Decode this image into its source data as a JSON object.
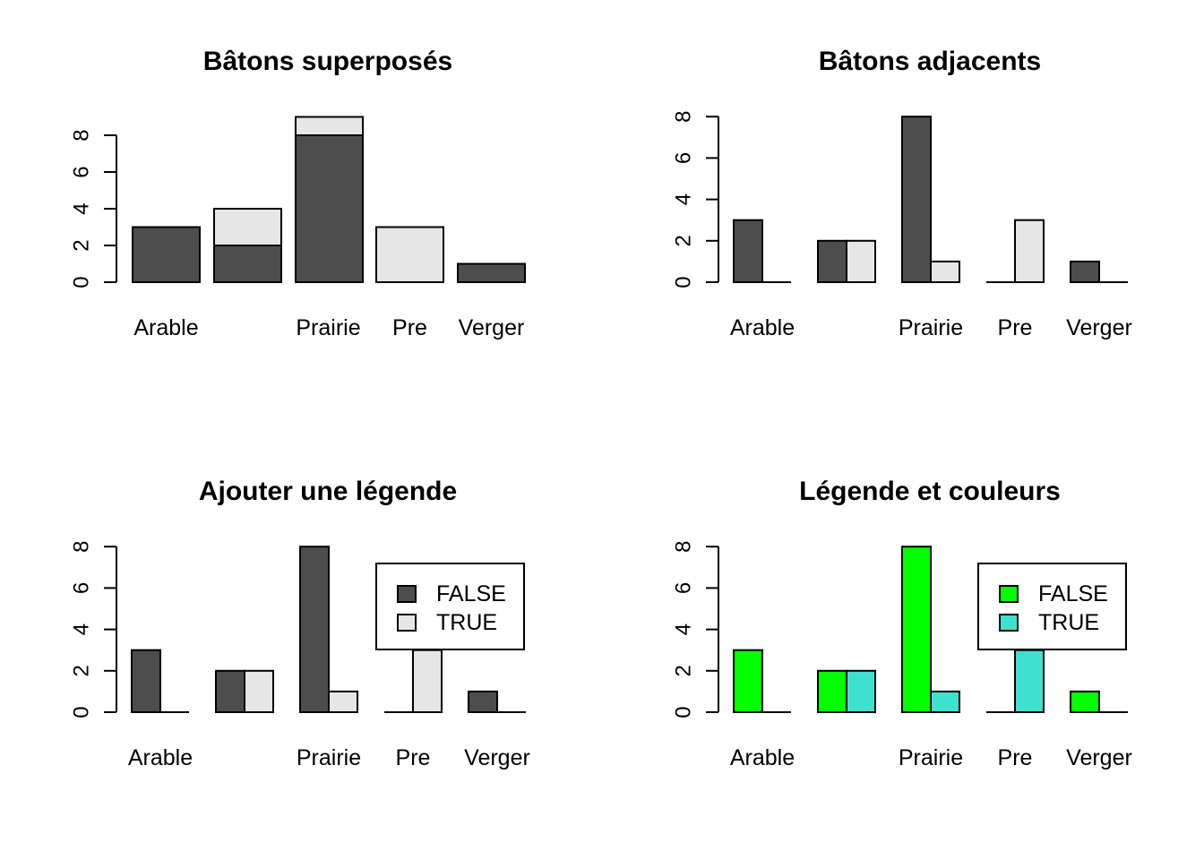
{
  "colors": {
    "grey_dark": "#4D4D4D",
    "grey_light": "#E6E6E6",
    "green": "#00FF00",
    "turquoise": "#40E0D0",
    "border": "#000000"
  },
  "chart_data": [
    {
      "type": "bar",
      "mode": "stacked",
      "title": "Bâtons superposés",
      "categories": [
        "Arable",
        "",
        "Prairie",
        "Pre",
        "Verger"
      ],
      "series": [
        {
          "values": [
            3,
            2,
            8,
            0,
            1
          ],
          "color": "#4D4D4D"
        },
        {
          "values": [
            0,
            2,
            1,
            3,
            0
          ],
          "color": "#E6E6E6"
        }
      ],
      "yticks": [
        "0",
        "2",
        "4",
        "6",
        "8"
      ],
      "ylim": [
        0,
        9
      ],
      "legend": null
    },
    {
      "type": "bar",
      "mode": "grouped",
      "title": "Bâtons adjacents",
      "categories": [
        "Arable",
        "",
        "Prairie",
        "Pre",
        "Verger"
      ],
      "series": [
        {
          "values": [
            3,
            2,
            8,
            0,
            1
          ],
          "color": "#4D4D4D"
        },
        {
          "values": [
            0,
            2,
            1,
            3,
            0
          ],
          "color": "#E6E6E6"
        }
      ],
      "yticks": [
        "0",
        "2",
        "4",
        "6",
        "8"
      ],
      "ylim": [
        0,
        8
      ],
      "legend": null
    },
    {
      "type": "bar",
      "mode": "grouped",
      "title": "Ajouter une légende",
      "categories": [
        "Arable",
        "",
        "Prairie",
        "Pre",
        "Verger"
      ],
      "series": [
        {
          "name": "FALSE",
          "values": [
            3,
            2,
            8,
            0,
            1
          ],
          "color": "#4D4D4D"
        },
        {
          "name": "TRUE",
          "values": [
            0,
            2,
            1,
            3,
            0
          ],
          "color": "#E6E6E6"
        }
      ],
      "yticks": [
        "0",
        "2",
        "4",
        "6",
        "8"
      ],
      "ylim": [
        0,
        8
      ],
      "legend": "top-right"
    },
    {
      "type": "bar",
      "mode": "grouped",
      "title": "Légende et couleurs",
      "categories": [
        "Arable",
        "",
        "Prairie",
        "Pre",
        "Verger"
      ],
      "series": [
        {
          "name": "FALSE",
          "values": [
            3,
            2,
            8,
            0,
            1
          ],
          "color": "#00FF00"
        },
        {
          "name": "TRUE",
          "values": [
            0,
            2,
            1,
            3,
            0
          ],
          "color": "#40E0D0"
        }
      ],
      "yticks": [
        "0",
        "2",
        "4",
        "6",
        "8"
      ],
      "ylim": [
        0,
        8
      ],
      "legend": "top-right"
    }
  ]
}
